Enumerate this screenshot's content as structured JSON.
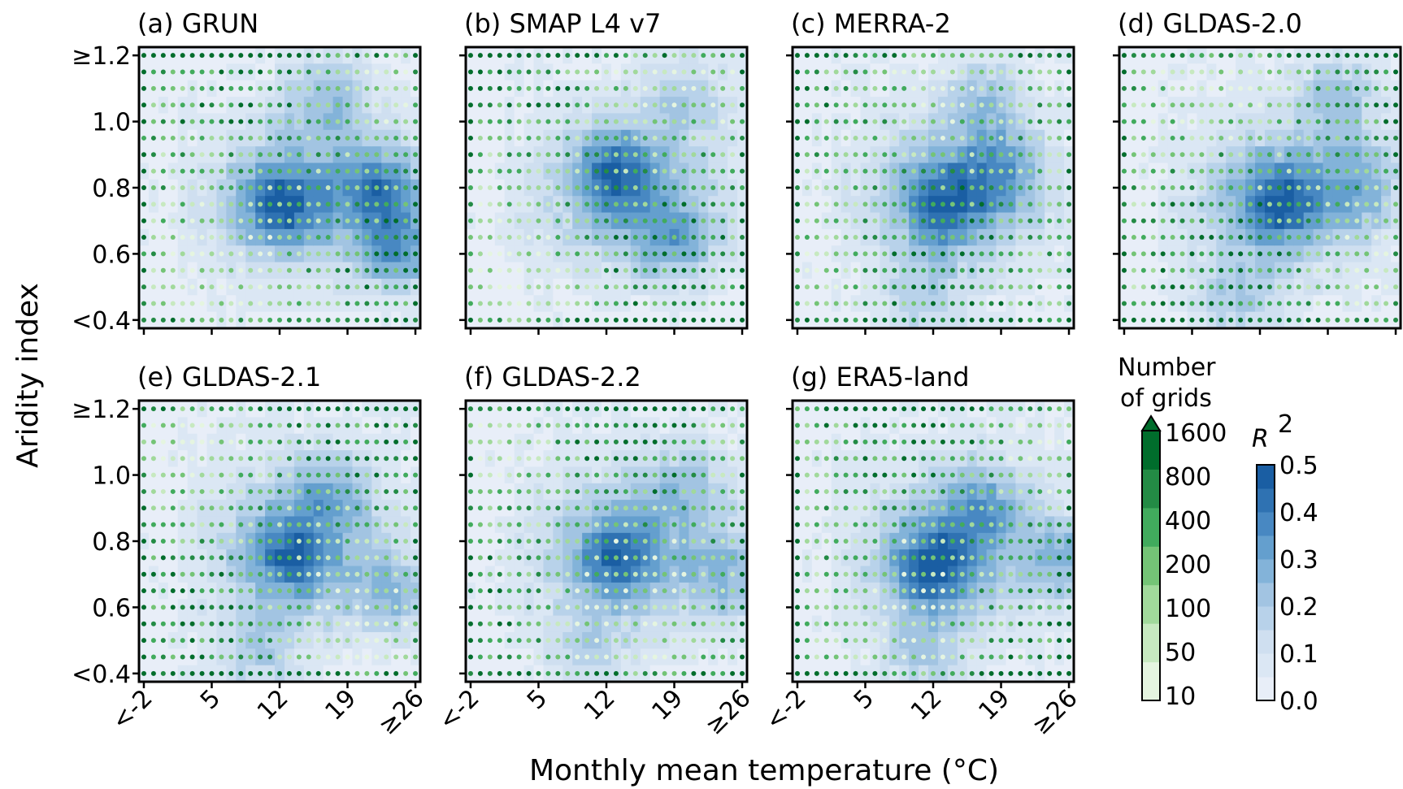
{
  "figure": {
    "xlabel": "Monthly mean temperature (°C)",
    "ylabel": "Aridity index"
  },
  "chart_data": {
    "type": "heatmap",
    "x_tick_labels": [
      "<-2",
      "5",
      "12",
      "19",
      "≥26"
    ],
    "y_tick_labels": [
      "≥1.2",
      "1.0",
      "0.8",
      "0.6",
      "<0.4"
    ],
    "x_bins": 29,
    "y_bins": 17,
    "temperature_range": [
      -2,
      26
    ],
    "aridity_range": [
      0.4,
      1.2
    ],
    "panels": [
      {
        "title": "(a) GRUN",
        "hotspots": [
          [
            12,
            0.75,
            0.38
          ],
          [
            22,
            0.8,
            0.4
          ],
          [
            24,
            0.62,
            0.38
          ],
          [
            17,
            1.05,
            0.3
          ]
        ]
      },
      {
        "title": "(b) SMAP L4 v7",
        "hotspots": [
          [
            13,
            0.85,
            0.37
          ],
          [
            19,
            0.65,
            0.3
          ],
          [
            20,
            1.05,
            0.26
          ]
        ]
      },
      {
        "title": "(c) MERRA-2",
        "hotspots": [
          [
            13,
            0.75,
            0.36
          ],
          [
            11,
            0.45,
            0.32
          ],
          [
            19,
            0.85,
            0.3
          ],
          [
            17,
            1.05,
            0.27
          ]
        ]
      },
      {
        "title": "(d) GLDAS-2.0",
        "hotspots": [
          [
            14,
            0.75,
            0.36
          ],
          [
            10,
            0.45,
            0.34
          ],
          [
            20,
            1.05,
            0.28
          ],
          [
            22,
            0.8,
            0.3
          ]
        ]
      },
      {
        "title": "(e) GLDAS-2.1",
        "hotspots": [
          [
            13,
            0.75,
            0.34
          ],
          [
            10,
            0.45,
            0.33
          ],
          [
            17,
            0.95,
            0.28
          ],
          [
            23,
            0.65,
            0.3
          ]
        ]
      },
      {
        "title": "(f) GLDAS-2.2",
        "hotspots": [
          [
            13,
            0.75,
            0.35
          ],
          [
            10,
            0.45,
            0.3
          ],
          [
            20,
            0.95,
            0.27
          ],
          [
            24,
            0.7,
            0.3
          ]
        ]
      },
      {
        "title": "(g) ERA5-land",
        "hotspots": [
          [
            12,
            0.72,
            0.4
          ],
          [
            11,
            0.45,
            0.34
          ],
          [
            17,
            0.9,
            0.3
          ],
          [
            25,
            0.75,
            0.3
          ]
        ]
      }
    ],
    "grid_count_colorbar": {
      "title_lines": [
        "Number",
        "of grids"
      ],
      "bounds": [
        "10",
        "50",
        "100",
        "200",
        "400",
        "800",
        "1600"
      ],
      "colors": [
        "#e5f5e0",
        "#c7e9c0",
        "#a1d99b",
        "#74c476",
        "#41ab5d",
        "#238b45",
        "#006d2c"
      ],
      "extend": "max"
    },
    "r2_colorbar": {
      "title_base": "R",
      "title_superscript": "2",
      "labels": [
        "0.0",
        "0.1",
        "0.2",
        "0.3",
        "0.4",
        "0.5"
      ],
      "colors": [
        "#e8eef8",
        "#dbe7f4",
        "#cfdff0",
        "#b8d2ea",
        "#a2c4e2",
        "#83b3d9",
        "#649fce",
        "#4888c2",
        "#2f72b2",
        "#1a5ea3"
      ]
    }
  }
}
